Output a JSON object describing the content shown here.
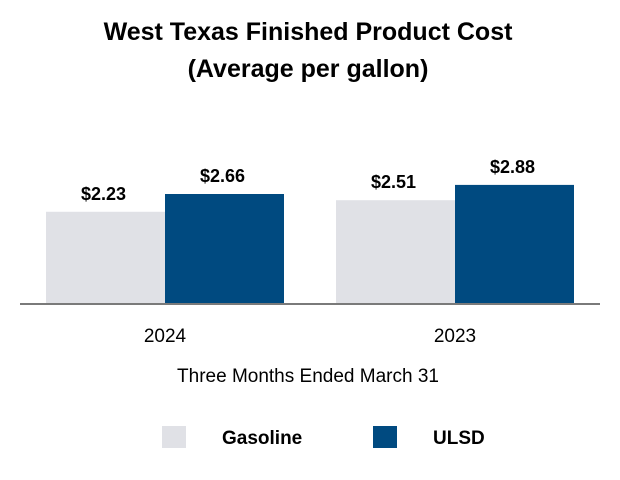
{
  "chart_data": {
    "type": "bar",
    "title": "West Texas Finished Product Cost",
    "subtitle": "(Average per gallon)",
    "xlabel": "Three Months Ended March 31",
    "ylabel": "",
    "categories": [
      "2024",
      "2023"
    ],
    "series": [
      {
        "name": "Gasoline",
        "color": "#e0e1e6",
        "values": [
          2.23,
          2.51
        ],
        "labels": [
          "$2.23",
          "$2.51"
        ]
      },
      {
        "name": "ULSD",
        "color": "#004a80",
        "values": [
          2.66,
          2.88
        ],
        "labels": [
          "$2.66",
          "$2.88"
        ]
      }
    ],
    "ylim": [
      0,
      3.3
    ],
    "grid": false,
    "legend_position": "bottom"
  }
}
